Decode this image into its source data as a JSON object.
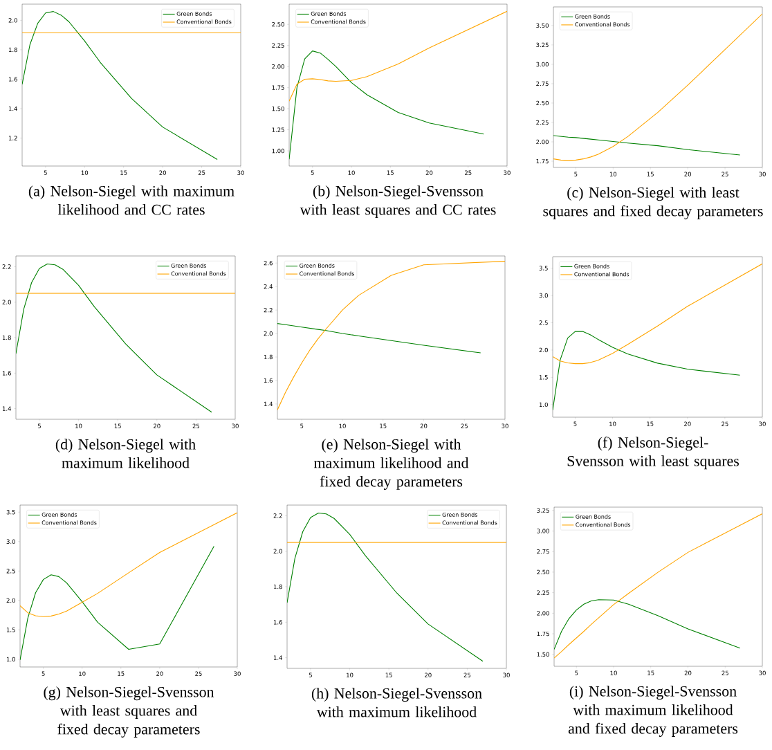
{
  "chart_data": [
    {
      "type": "line",
      "title": "(a) Nelson-Siegel with maximum likelihood and CC rates",
      "legend": "top right",
      "xlim": [
        2,
        30
      ],
      "xticks": [
        5,
        10,
        15,
        20,
        25,
        30
      ],
      "ylim": [
        1.01,
        2.11
      ],
      "yticks": [
        {
          "value": 1.2,
          "label": "1.2"
        },
        {
          "value": 1.4,
          "label": "1.4"
        },
        {
          "value": 1.6,
          "label": "1.6"
        },
        {
          "value": 1.8,
          "label": "1.8"
        },
        {
          "value": 2.0,
          "label": "2.0"
        }
      ],
      "series": [
        {
          "name": "Green Bonds",
          "color": "#008000",
          "x": [
            2,
            3,
            4,
            5,
            6,
            7,
            8,
            10,
            12,
            16,
            20,
            27
          ],
          "values": [
            1.565,
            1.835,
            1.98,
            2.05,
            2.06,
            2.035,
            1.99,
            1.86,
            1.715,
            1.47,
            1.275,
            1.055
          ]
        },
        {
          "name": "Conventional Bonds",
          "color": "#ffa500",
          "x": [
            2,
            30
          ],
          "values": [
            1.915,
            1.915
          ]
        }
      ]
    },
    {
      "type": "line",
      "title": "(b) Nelson-Siegel-Svensson with least squares and CC rates",
      "legend": "top left",
      "xlim": [
        2,
        30
      ],
      "xticks": [
        5,
        10,
        15,
        20,
        25,
        30
      ],
      "ylim": [
        0.82,
        2.74
      ],
      "yticks": [
        {
          "value": 1.0,
          "label": "1.00"
        },
        {
          "value": 1.25,
          "label": "1.25"
        },
        {
          "value": 1.5,
          "label": "1.50"
        },
        {
          "value": 1.75,
          "label": "1.75"
        },
        {
          "value": 2.0,
          "label": "2.00"
        },
        {
          "value": 2.25,
          "label": "2.25"
        },
        {
          "value": 2.5,
          "label": "2.50"
        }
      ],
      "series": [
        {
          "name": "Green Bonds",
          "color": "#008000",
          "x": [
            2,
            3,
            4,
            5,
            6,
            7,
            8,
            10,
            12,
            16,
            20,
            27
          ],
          "values": [
            0.9,
            1.75,
            2.09,
            2.185,
            2.16,
            2.085,
            2.0,
            1.81,
            1.665,
            1.455,
            1.33,
            1.2
          ]
        },
        {
          "name": "Conventional Bonds",
          "color": "#ffa500",
          "x": [
            2,
            3,
            4,
            5,
            6,
            7,
            8,
            10,
            12,
            16,
            20,
            30
          ],
          "values": [
            1.59,
            1.79,
            1.85,
            1.855,
            1.845,
            1.83,
            1.825,
            1.835,
            1.88,
            2.03,
            2.22,
            2.655
          ]
        }
      ]
    },
    {
      "type": "line",
      "title": "(c) Nelson-Siegel with least squares and fixed decay parameters",
      "legend": "top left",
      "xlim": [
        2,
        30
      ],
      "xticks": [
        5,
        10,
        15,
        20,
        25,
        30
      ],
      "ylim": [
        1.67,
        3.74
      ],
      "yticks": [
        {
          "value": 1.75,
          "label": "1.75"
        },
        {
          "value": 2.0,
          "label": "2.00"
        },
        {
          "value": 2.25,
          "label": "2.25"
        },
        {
          "value": 2.5,
          "label": "2.50"
        },
        {
          "value": 2.75,
          "label": "2.75"
        },
        {
          "value": 3.0,
          "label": "3.00"
        },
        {
          "value": 3.25,
          "label": "3.25"
        },
        {
          "value": 3.5,
          "label": "3.50"
        }
      ],
      "series": [
        {
          "name": "Green Bonds",
          "color": "#008000",
          "x": [
            2,
            3,
            4,
            5,
            6,
            7,
            8,
            10,
            12,
            16,
            20,
            27
          ],
          "values": [
            2.08,
            2.07,
            2.06,
            2.055,
            2.045,
            2.035,
            2.025,
            2.005,
            1.985,
            1.95,
            1.9,
            1.83
          ]
        },
        {
          "name": "Conventional Bonds",
          "color": "#ffa500",
          "x": [
            2,
            3,
            4,
            5,
            6,
            7,
            8,
            10,
            12,
            16,
            20,
            30
          ],
          "values": [
            1.78,
            1.765,
            1.76,
            1.765,
            1.78,
            1.805,
            1.84,
            1.94,
            2.07,
            2.38,
            2.73,
            3.65
          ]
        }
      ]
    },
    {
      "type": "line",
      "title": "(d) Nelson-Siegel with maximum likelihood",
      "legend": "top right",
      "xlim": [
        2,
        30
      ],
      "xticks": [
        5,
        10,
        15,
        20,
        25,
        30
      ],
      "ylim": [
        1.34,
        2.26
      ],
      "yticks": [
        {
          "value": 1.4,
          "label": "1.4"
        },
        {
          "value": 1.6,
          "label": "1.6"
        },
        {
          "value": 1.8,
          "label": "1.8"
        },
        {
          "value": 2.0,
          "label": "2.0"
        },
        {
          "value": 2.2,
          "label": "2.2"
        }
      ],
      "series": [
        {
          "name": "Green Bonds",
          "color": "#008000",
          "x": [
            2,
            3,
            4,
            5,
            6,
            7,
            8,
            10,
            12,
            16,
            20,
            27
          ],
          "values": [
            1.71,
            1.96,
            2.11,
            2.19,
            2.215,
            2.21,
            2.185,
            2.095,
            1.975,
            1.765,
            1.59,
            1.38
          ]
        },
        {
          "name": "Conventional Bonds",
          "color": "#ffa500",
          "x": [
            2,
            30
          ],
          "values": [
            2.05,
            2.05
          ]
        }
      ]
    },
    {
      "type": "line",
      "title": "(e) Nelson-Siegel with maximum likelihood and fixed decay parameters",
      "legend": "top left",
      "xlim": [
        2,
        30
      ],
      "xticks": [
        5,
        10,
        15,
        20,
        25,
        30
      ],
      "ylim": [
        1.27,
        2.66
      ],
      "yticks": [
        {
          "value": 1.4,
          "label": "1.4"
        },
        {
          "value": 1.6,
          "label": "1.6"
        },
        {
          "value": 1.8,
          "label": "1.8"
        },
        {
          "value": 2.0,
          "label": "2.0"
        },
        {
          "value": 2.2,
          "label": "2.2"
        },
        {
          "value": 2.4,
          "label": "2.4"
        },
        {
          "value": 2.6,
          "label": "2.6"
        }
      ],
      "series": [
        {
          "name": "Green Bonds",
          "color": "#008000",
          "x": [
            2,
            3,
            4,
            5,
            6,
            7,
            8,
            10,
            12,
            16,
            20,
            27
          ],
          "values": [
            2.085,
            2.075,
            2.065,
            2.055,
            2.045,
            2.035,
            2.025,
            2.0,
            1.98,
            1.94,
            1.9,
            1.835
          ]
        },
        {
          "name": "Conventional Bonds",
          "color": "#ffa500",
          "x": [
            2,
            3,
            4,
            5,
            6,
            7,
            8,
            10,
            12,
            16,
            20,
            30
          ],
          "values": [
            1.35,
            1.5,
            1.63,
            1.75,
            1.86,
            1.955,
            2.04,
            2.2,
            2.325,
            2.495,
            2.585,
            2.615
          ]
        }
      ]
    },
    {
      "type": "line",
      "title": "(f) Nelson-Siegel-Svensson with least squares",
      "legend": "top left",
      "xlim": [
        2,
        30
      ],
      "xticks": [
        5,
        10,
        15,
        20,
        25,
        30
      ],
      "ylim": [
        0.77,
        3.71
      ],
      "yticks": [
        {
          "value": 1.0,
          "label": "1.0"
        },
        {
          "value": 1.5,
          "label": "1.5"
        },
        {
          "value": 2.0,
          "label": "2.0"
        },
        {
          "value": 2.5,
          "label": "2.5"
        },
        {
          "value": 3.0,
          "label": "3.0"
        },
        {
          "value": 3.5,
          "label": "3.5"
        }
      ],
      "series": [
        {
          "name": "Green Bonds",
          "color": "#008000",
          "x": [
            2,
            3,
            4,
            5,
            6,
            7,
            8,
            10,
            12,
            16,
            20,
            27
          ],
          "values": [
            0.9,
            1.82,
            2.22,
            2.34,
            2.34,
            2.28,
            2.2,
            2.05,
            1.93,
            1.76,
            1.65,
            1.54
          ]
        },
        {
          "name": "Conventional Bonds",
          "color": "#ffa500",
          "x": [
            2,
            3,
            4,
            5,
            6,
            7,
            8,
            10,
            12,
            16,
            20,
            30
          ],
          "values": [
            1.88,
            1.8,
            1.765,
            1.75,
            1.75,
            1.77,
            1.81,
            1.94,
            2.1,
            2.44,
            2.8,
            3.58
          ]
        }
      ]
    },
    {
      "type": "line",
      "title": "(g) Nelson-Siegel-Svensson with least squares and fixed decay parameters",
      "legend": "top left",
      "xlim": [
        2,
        30
      ],
      "xticks": [
        5,
        10,
        15,
        20,
        25,
        30
      ],
      "ylim": [
        0.87,
        3.62
      ],
      "yticks": [
        {
          "value": 1.0,
          "label": "1.0"
        },
        {
          "value": 1.5,
          "label": "1.5"
        },
        {
          "value": 2.0,
          "label": "2.0"
        },
        {
          "value": 2.5,
          "label": "2.5"
        },
        {
          "value": 3.0,
          "label": "3.0"
        },
        {
          "value": 3.5,
          "label": "3.5"
        }
      ],
      "series": [
        {
          "name": "Green Bonds",
          "color": "#008000",
          "x": [
            2,
            3,
            4,
            5,
            6,
            7,
            8,
            10,
            12,
            16,
            20,
            27
          ],
          "values": [
            0.99,
            1.7,
            2.13,
            2.355,
            2.435,
            2.405,
            2.3,
            1.98,
            1.63,
            1.17,
            1.26,
            2.92
          ]
        },
        {
          "name": "Conventional Bonds",
          "color": "#ffa500",
          "x": [
            2,
            3,
            4,
            5,
            6,
            7,
            8,
            10,
            12,
            16,
            20,
            30
          ],
          "values": [
            1.91,
            1.79,
            1.74,
            1.725,
            1.735,
            1.77,
            1.82,
            1.97,
            2.12,
            2.47,
            2.815,
            3.49
          ]
        }
      ]
    },
    {
      "type": "line",
      "title": "(h) Nelson-Siegel-Svensson with maximum likelihood",
      "legend": "top right",
      "xlim": [
        2,
        30
      ],
      "xticks": [
        5,
        10,
        15,
        20,
        25,
        30
      ],
      "ylim": [
        1.34,
        2.26
      ],
      "yticks": [
        {
          "value": 1.4,
          "label": "1.4"
        },
        {
          "value": 1.6,
          "label": "1.6"
        },
        {
          "value": 1.8,
          "label": "1.8"
        },
        {
          "value": 2.0,
          "label": "2.0"
        },
        {
          "value": 2.2,
          "label": "2.2"
        }
      ],
      "series": [
        {
          "name": "Green Bonds",
          "color": "#008000",
          "x": [
            2,
            3,
            4,
            5,
            6,
            7,
            8,
            10,
            12,
            16,
            20,
            27
          ],
          "values": [
            1.71,
            1.96,
            2.11,
            2.19,
            2.215,
            2.21,
            2.185,
            2.095,
            1.975,
            1.765,
            1.59,
            1.38
          ]
        },
        {
          "name": "Conventional Bonds",
          "color": "#ffa500",
          "x": [
            2,
            30
          ],
          "values": [
            2.05,
            2.05
          ]
        }
      ]
    },
    {
      "type": "line",
      "title": "(i) Nelson-Siegel-Svensson with maximum likelihood and fixed decay parameters",
      "legend": "top left",
      "xlim": [
        2,
        30
      ],
      "xticks": [
        5,
        10,
        15,
        20,
        25,
        30
      ],
      "ylim": [
        1.355,
        3.29
      ],
      "yticks": [
        {
          "value": 1.5,
          "label": "1.50"
        },
        {
          "value": 1.75,
          "label": "1.75"
        },
        {
          "value": 2.0,
          "label": "2.00"
        },
        {
          "value": 2.25,
          "label": "2.25"
        },
        {
          "value": 2.5,
          "label": "2.50"
        },
        {
          "value": 2.75,
          "label": "2.75"
        },
        {
          "value": 3.0,
          "label": "3.00"
        },
        {
          "value": 3.25,
          "label": "3.25"
        }
      ],
      "series": [
        {
          "name": "Green Bonds",
          "color": "#008000",
          "x": [
            2,
            3,
            4,
            5,
            6,
            7,
            8,
            10,
            12,
            16,
            20,
            27
          ],
          "values": [
            1.56,
            1.78,
            1.935,
            2.04,
            2.11,
            2.15,
            2.165,
            2.16,
            2.11,
            1.97,
            1.81,
            1.575
          ]
        },
        {
          "name": "Conventional Bonds",
          "color": "#ffa500",
          "x": [
            2,
            3,
            4,
            5,
            6,
            7,
            8,
            10,
            12,
            16,
            20,
            30
          ],
          "values": [
            1.455,
            1.535,
            1.62,
            1.7,
            1.78,
            1.865,
            1.945,
            2.105,
            2.24,
            2.5,
            2.74,
            3.21
          ]
        }
      ]
    }
  ]
}
